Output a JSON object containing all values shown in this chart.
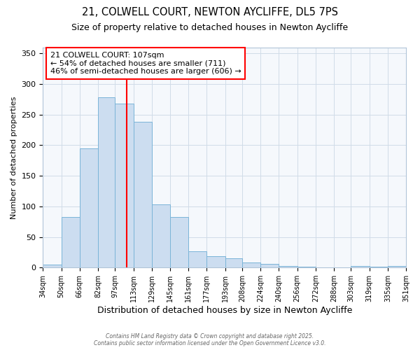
{
  "title1": "21, COLWELL COURT, NEWTON AYCLIFFE, DL5 7PS",
  "title2": "Size of property relative to detached houses in Newton Aycliffe",
  "xlabel": "Distribution of detached houses by size in Newton Aycliffe",
  "ylabel": "Number of detached properties",
  "bin_edges": [
    34,
    50,
    66,
    82,
    97,
    113,
    129,
    145,
    161,
    177,
    193,
    208,
    224,
    240,
    256,
    272,
    288,
    303,
    319,
    335,
    351
  ],
  "bar_heights": [
    5,
    83,
    195,
    278,
    268,
    238,
    103,
    83,
    27,
    19,
    15,
    8,
    6,
    3,
    1,
    0,
    0,
    3,
    1,
    2,
    3
  ],
  "bar_color": "#ccddf0",
  "bar_edge_color": "#7ab4d8",
  "vline_x": 107,
  "vline_color": "red",
  "annotation_title": "21 COLWELL COURT: 107sqm",
  "annotation_line1": "← 54% of detached houses are smaller (711)",
  "annotation_line2": "46% of semi-detached houses are larger (606) →",
  "annotation_box_color": "white",
  "annotation_edge_color": "red",
  "ylim": [
    0,
    360
  ],
  "yticks": [
    0,
    50,
    100,
    150,
    200,
    250,
    300,
    350
  ],
  "bg_color": "#ffffff",
  "plot_bg_color": "#f5f8fc",
  "footnote": "Contains HM Land Registry data © Crown copyright and database right 2025.\nContains public sector information licensed under the Open Government Licence v3.0.",
  "title1_fontsize": 10.5,
  "title2_fontsize": 9,
  "xlabel_fontsize": 9,
  "ylabel_fontsize": 8,
  "annot_fontsize": 8,
  "tick_fontsize": 7,
  "ytick_fontsize": 8
}
